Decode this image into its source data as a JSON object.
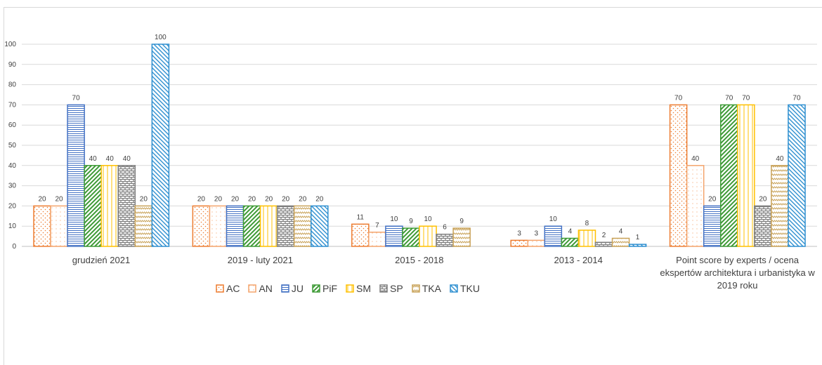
{
  "chart_data": {
    "type": "bar",
    "categories": [
      "grudzień 2021",
      "2019 - luty 2021",
      "2015 - 2018",
      "2013 - 2014",
      "Point score by experts / ocena ekspertów architektura i urbanistyka w 2019 roku"
    ],
    "series": [
      {
        "name": "AC",
        "color": "#ed7d31",
        "values": [
          20,
          20,
          11,
          3,
          70
        ]
      },
      {
        "name": "AN",
        "color": "#f4a46c",
        "values": [
          20,
          20,
          7,
          3,
          40
        ]
      },
      {
        "name": "JU",
        "color": "#4472c4",
        "values": [
          70,
          20,
          10,
          10,
          20
        ]
      },
      {
        "name": "PiF",
        "color": "#3d9a35",
        "values": [
          40,
          20,
          9,
          4,
          70
        ]
      },
      {
        "name": "SM",
        "color": "#ffc000",
        "values": [
          40,
          20,
          10,
          8,
          70
        ]
      },
      {
        "name": "SP",
        "color": "#7f7f7f",
        "values": [
          40,
          20,
          6,
          2,
          20
        ]
      },
      {
        "name": "TKA",
        "color": "#c9a35a",
        "values": [
          20,
          20,
          9,
          4,
          40
        ]
      },
      {
        "name": "TKU",
        "color": "#2e8fd0",
        "values": [
          100,
          20,
          null,
          1,
          70
        ]
      }
    ],
    "ylim": [
      0,
      100
    ],
    "yticks": [
      0,
      10,
      20,
      30,
      40,
      50,
      60,
      70,
      80,
      90,
      100
    ],
    "grid": true,
    "legend": "bottom"
  }
}
